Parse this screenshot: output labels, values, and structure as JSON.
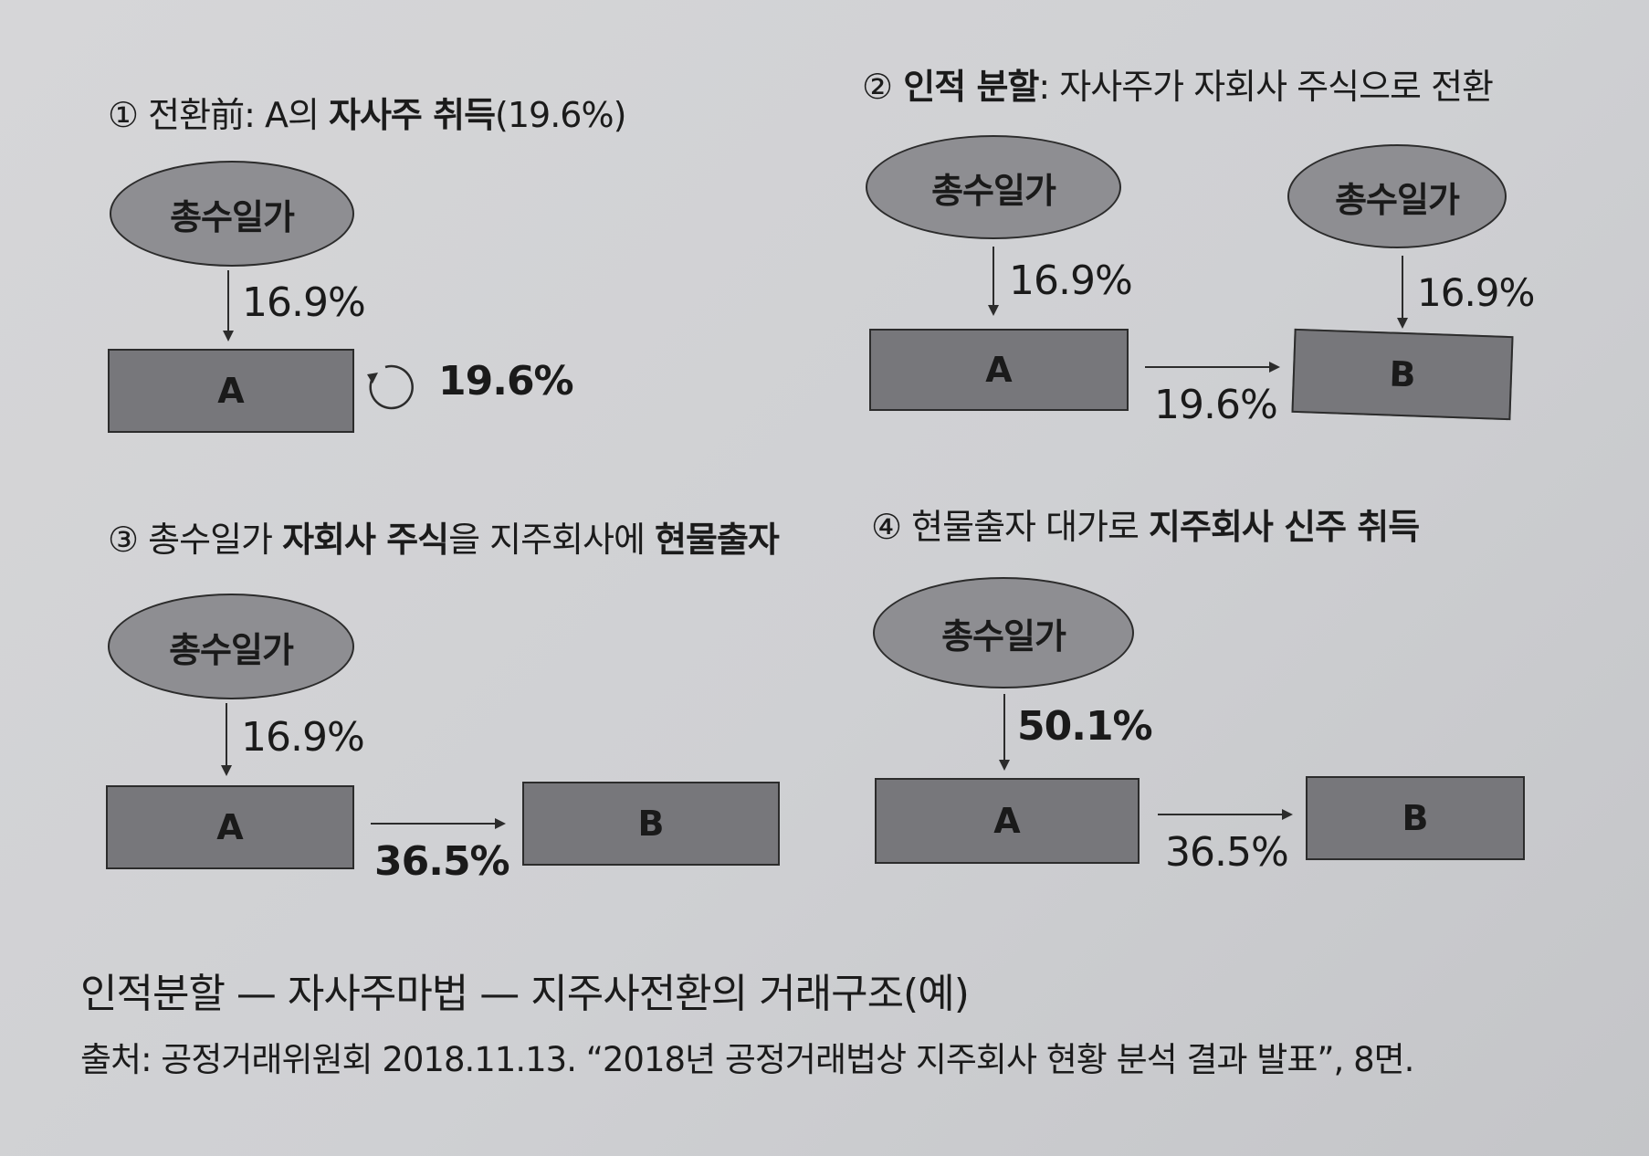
{
  "panel1": {
    "num": "①",
    "title_pre": " 전환前: A의 ",
    "title_bold": "자사주 취득",
    "title_post": "(19.6%)",
    "ellipse": "총수일가",
    "pct_down": "16.9%",
    "box": "A",
    "pct_self": "19.6%"
  },
  "panel2": {
    "num": "②",
    "title_bold": " 인적 분할",
    "title_post": ": 자사주가 자회사 주식으로 전환",
    "ellipse_a": "총수일가",
    "ellipse_b": "총수일가",
    "pct_down_a": "16.9%",
    "pct_down_b": "16.9%",
    "box_a": "A",
    "box_b": "B",
    "pct_ab": "19.6%"
  },
  "panel3": {
    "num": "③",
    "title_pre": " 총수일가 ",
    "title_bold1": "자회사 주식",
    "title_mid": "을 지주회사에 ",
    "title_bold2": "현물출자",
    "ellipse": "총수일가",
    "pct_down": "16.9%",
    "box_a": "A",
    "box_b": "B",
    "pct_ab": "36.5%"
  },
  "panel4": {
    "num": "④",
    "title_pre": " 현물출자 대가로 ",
    "title_bold": "지주회사 신주 취득",
    "ellipse": "총수일가",
    "pct_down": "50.1%",
    "box_a": "A",
    "box_b": "B",
    "pct_ab": "36.5%"
  },
  "caption": {
    "title": "인적분할 — 자사주마법 — 지주사전환의 거래구조(예)",
    "source": "출처: 공정거래위원회 2018.11.13. “2018년 공정거래법상 지주회사 현황 분석 결과 발표”, 8면."
  },
  "colors": {
    "background": "#cfd0d3",
    "ellipse_fill": "#8e8e92",
    "box_fill": "#77777b",
    "stroke": "#2c2c2c"
  }
}
